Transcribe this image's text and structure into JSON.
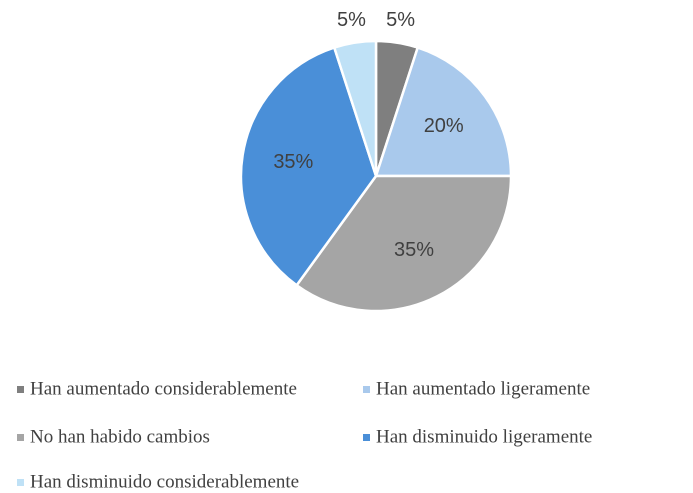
{
  "chart_data": {
    "type": "pie",
    "categories": [
      "Han aumentado considerablemente",
      "Han aumentado ligeramente",
      "No han habido cambios",
      "Han disminuido ligeramente",
      "Han disminuido considerablemente"
    ],
    "values": [
      5,
      20,
      35,
      35,
      5
    ],
    "value_labels": [
      "5%",
      "20%",
      "35%",
      "35%",
      "5%"
    ],
    "colors": [
      "#7f7f7f",
      "#a9c9ec",
      "#a5a5a5",
      "#4a8fd8",
      "#bfe1f6"
    ],
    "legend": "bottom"
  }
}
